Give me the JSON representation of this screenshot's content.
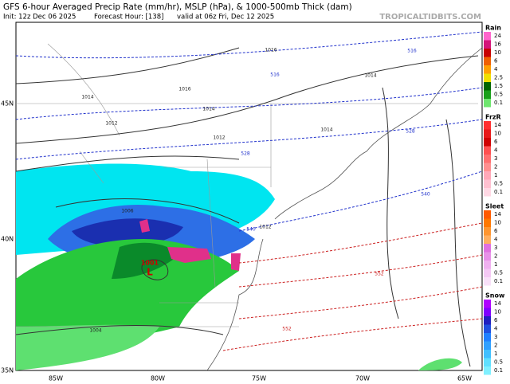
{
  "header": {
    "title": "GFS 6-hour Averaged Precip Rate (mm/hr), MSLP (hPa), & 1000-500mb Thick (dam)",
    "init": "Init: 12z Dec 06 2025",
    "forecast_hour": "Forecast Hour: [138]",
    "valid": "valid at 06z Fri, Dec 12 2025",
    "site": "TROPICALTIDBITS.COM"
  },
  "axes": {
    "lat_labels": [
      "45N",
      "40N",
      "35N"
    ],
    "lon_labels": [
      "85W",
      "80W",
      "75W",
      "70W",
      "65W"
    ]
  },
  "legend": [
    {
      "name": "Rain",
      "labels": [
        "24",
        "16",
        "10",
        "6",
        "4",
        "2.5",
        "1.5",
        "0.5",
        "0.1"
      ]
    },
    {
      "name": "FrzR",
      "labels": [
        "14",
        "10",
        "6",
        "4",
        "3",
        "2",
        "1",
        "0.5",
        "0.1"
      ]
    },
    {
      "name": "Sleet",
      "labels": [
        "14",
        "10",
        "6",
        "4",
        "3",
        "2",
        "1",
        "0.5",
        "0.1"
      ]
    },
    {
      "name": "Snow",
      "labels": [
        "14",
        "10",
        "6",
        "4",
        "3",
        "2",
        "1",
        "0.5",
        "0.1"
      ]
    }
  ],
  "map": {
    "isobar_labels": [
      "1016",
      "1016",
      "1014",
      "1014",
      "1014",
      "1012",
      "1012",
      "1014",
      "1006",
      "1012",
      "1004"
    ],
    "low": {
      "symbol": "L",
      "pressure": "1001"
    },
    "thickness_labels": [
      "516",
      "516",
      "528",
      "528",
      "540",
      "540",
      "552",
      "552"
    ]
  }
}
